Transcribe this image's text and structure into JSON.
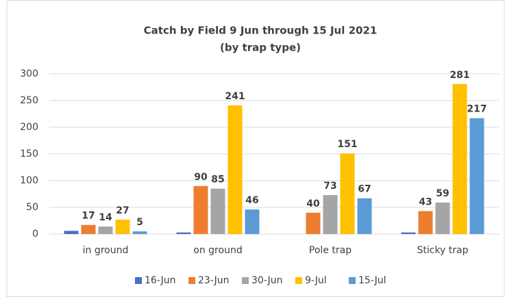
{
  "chart_data": {
    "type": "bar",
    "title": "Catch by Field 9 Jun through 15 Jul 2021",
    "subtitle": "(by trap type)",
    "categories": [
      "in ground",
      "on ground",
      "Pole trap",
      "Sticky trap"
    ],
    "series": [
      {
        "name": "16-Jun",
        "color": "#4472c4",
        "values": [
          6,
          3,
          null,
          3
        ],
        "data_labels": false
      },
      {
        "name": "23-Jun",
        "color": "#ed7d31",
        "values": [
          17,
          90,
          40,
          43
        ],
        "data_labels": true
      },
      {
        "name": "30-Jun",
        "color": "#a5a5a5",
        "values": [
          14,
          85,
          73,
          59
        ],
        "data_labels": true
      },
      {
        "name": "9-Jul",
        "color": "#ffc000",
        "values": [
          27,
          241,
          151,
          281
        ],
        "data_labels": true
      },
      {
        "name": "15-Jul",
        "color": "#5b9bd5",
        "values": [
          5,
          46,
          67,
          217
        ],
        "data_labels": true
      }
    ],
    "ylim": [
      0,
      300
    ],
    "yticks": [
      0,
      50,
      100,
      150,
      200,
      250,
      300
    ],
    "grid": true,
    "legend": "bottom"
  }
}
